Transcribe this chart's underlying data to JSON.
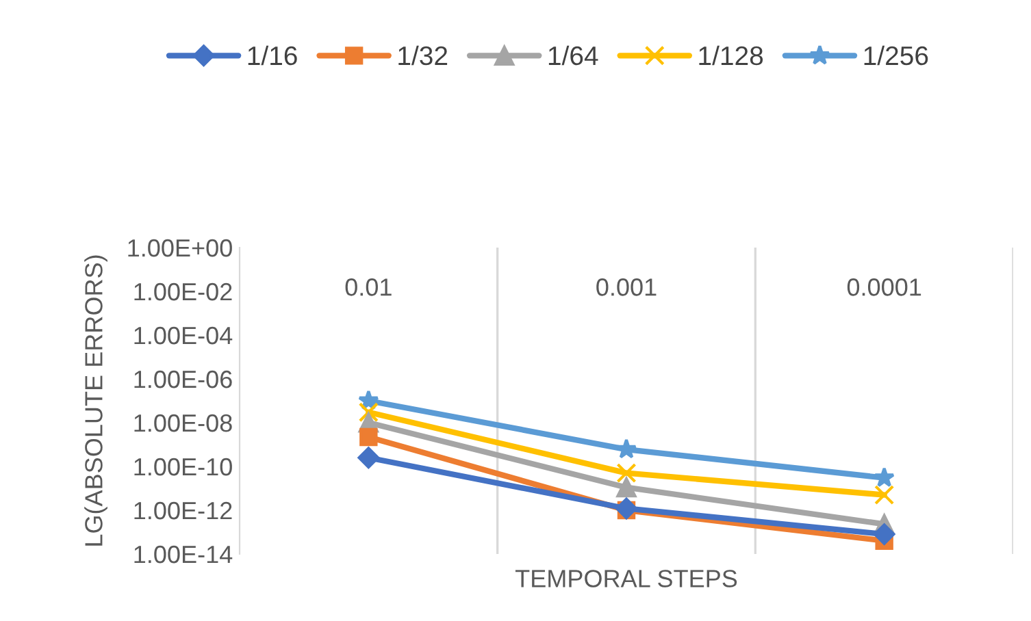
{
  "chart_data": {
    "type": "line",
    "xlabel": "TEMPORAL STEPS",
    "ylabel": "LG(ABSOLUTE ERRORS)",
    "categories": [
      "0.01",
      "0.001",
      "0.0001"
    ],
    "series": [
      {
        "name": "1/16",
        "color": "#4472c4",
        "marker": "diamond",
        "values": [
          2.5e-10,
          1.2e-12,
          8e-14
        ]
      },
      {
        "name": "1/32",
        "color": "#ed7d31",
        "marker": "square",
        "values": [
          2.2e-09,
          1e-12,
          4e-14
        ]
      },
      {
        "name": "1/64",
        "color": "#a5a5a5",
        "marker": "triangle",
        "values": [
          1e-08,
          1.1e-11,
          2.3e-13
        ]
      },
      {
        "name": "1/128",
        "color": "#ffc000",
        "marker": "cross",
        "values": [
          3e-08,
          5e-11,
          5e-12
        ]
      },
      {
        "name": "1/256",
        "color": "#5b9bd5",
        "marker": "star",
        "values": [
          1e-07,
          6e-10,
          3e-11
        ]
      }
    ],
    "log": true,
    "ylim": [
      1e-14,
      1
    ],
    "yticks": [
      {
        "value": 1,
        "label": "1.00E+00"
      },
      {
        "value": 0.01,
        "label": "1.00E-02"
      },
      {
        "value": 0.0001,
        "label": "1.00E-04"
      },
      {
        "value": 1e-06,
        "label": "1.00E-06"
      },
      {
        "value": 1e-08,
        "label": "1.00E-08"
      },
      {
        "value": 1e-10,
        "label": "1.00E-10"
      },
      {
        "value": 1e-12,
        "label": "1.00E-12"
      },
      {
        "value": 1e-14,
        "label": "1.00E-14"
      }
    ],
    "grid": "x",
    "legend": "top"
  }
}
